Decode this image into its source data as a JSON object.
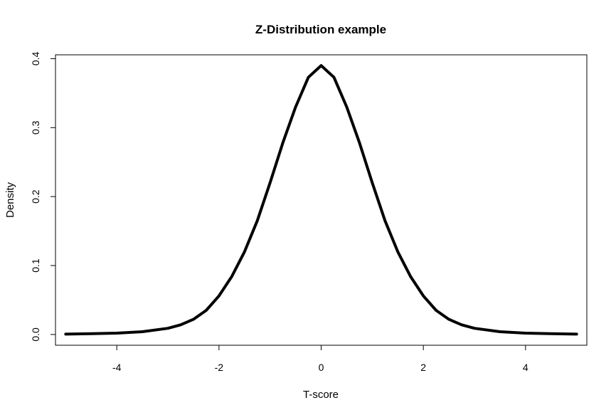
{
  "chart_data": {
    "type": "line",
    "title": "Z-Distribution example",
    "xlabel": "T-score",
    "ylabel": "Density",
    "xlim": [
      -5.2,
      5.2
    ],
    "ylim": [
      -0.0156,
      0.4056
    ],
    "x_ticks": [
      -4,
      -2,
      0,
      2,
      4
    ],
    "x_tick_labels": [
      "-4",
      "-2",
      "0",
      "2",
      "4"
    ],
    "y_ticks": [
      0.0,
      0.1,
      0.2,
      0.3,
      0.4
    ],
    "y_tick_labels": [
      "0.0",
      "0.1",
      "0.2",
      "0.3",
      "0.4"
    ],
    "grid": false,
    "legend": "none",
    "series": [
      {
        "color": "#000000",
        "x": [
          -5.0,
          -4.5,
          -4.0,
          -3.5,
          -3.0,
          -2.75,
          -2.5,
          -2.25,
          -2.0,
          -1.75,
          -1.5,
          -1.25,
          -1.0,
          -0.75,
          -0.5,
          -0.25,
          0.0,
          0.25,
          0.5,
          0.75,
          1.0,
          1.25,
          1.5,
          1.75,
          2.0,
          2.25,
          2.5,
          2.75,
          3.0,
          3.5,
          4.0,
          4.5,
          5.0
        ],
        "y": [
          0.0005,
          0.0012,
          0.002,
          0.004,
          0.009,
          0.014,
          0.022,
          0.035,
          0.056,
          0.084,
          0.12,
          0.165,
          0.22,
          0.278,
          0.33,
          0.373,
          0.39,
          0.373,
          0.33,
          0.278,
          0.22,
          0.165,
          0.12,
          0.084,
          0.056,
          0.035,
          0.022,
          0.014,
          0.009,
          0.004,
          0.002,
          0.0012,
          0.0005
        ]
      }
    ]
  }
}
